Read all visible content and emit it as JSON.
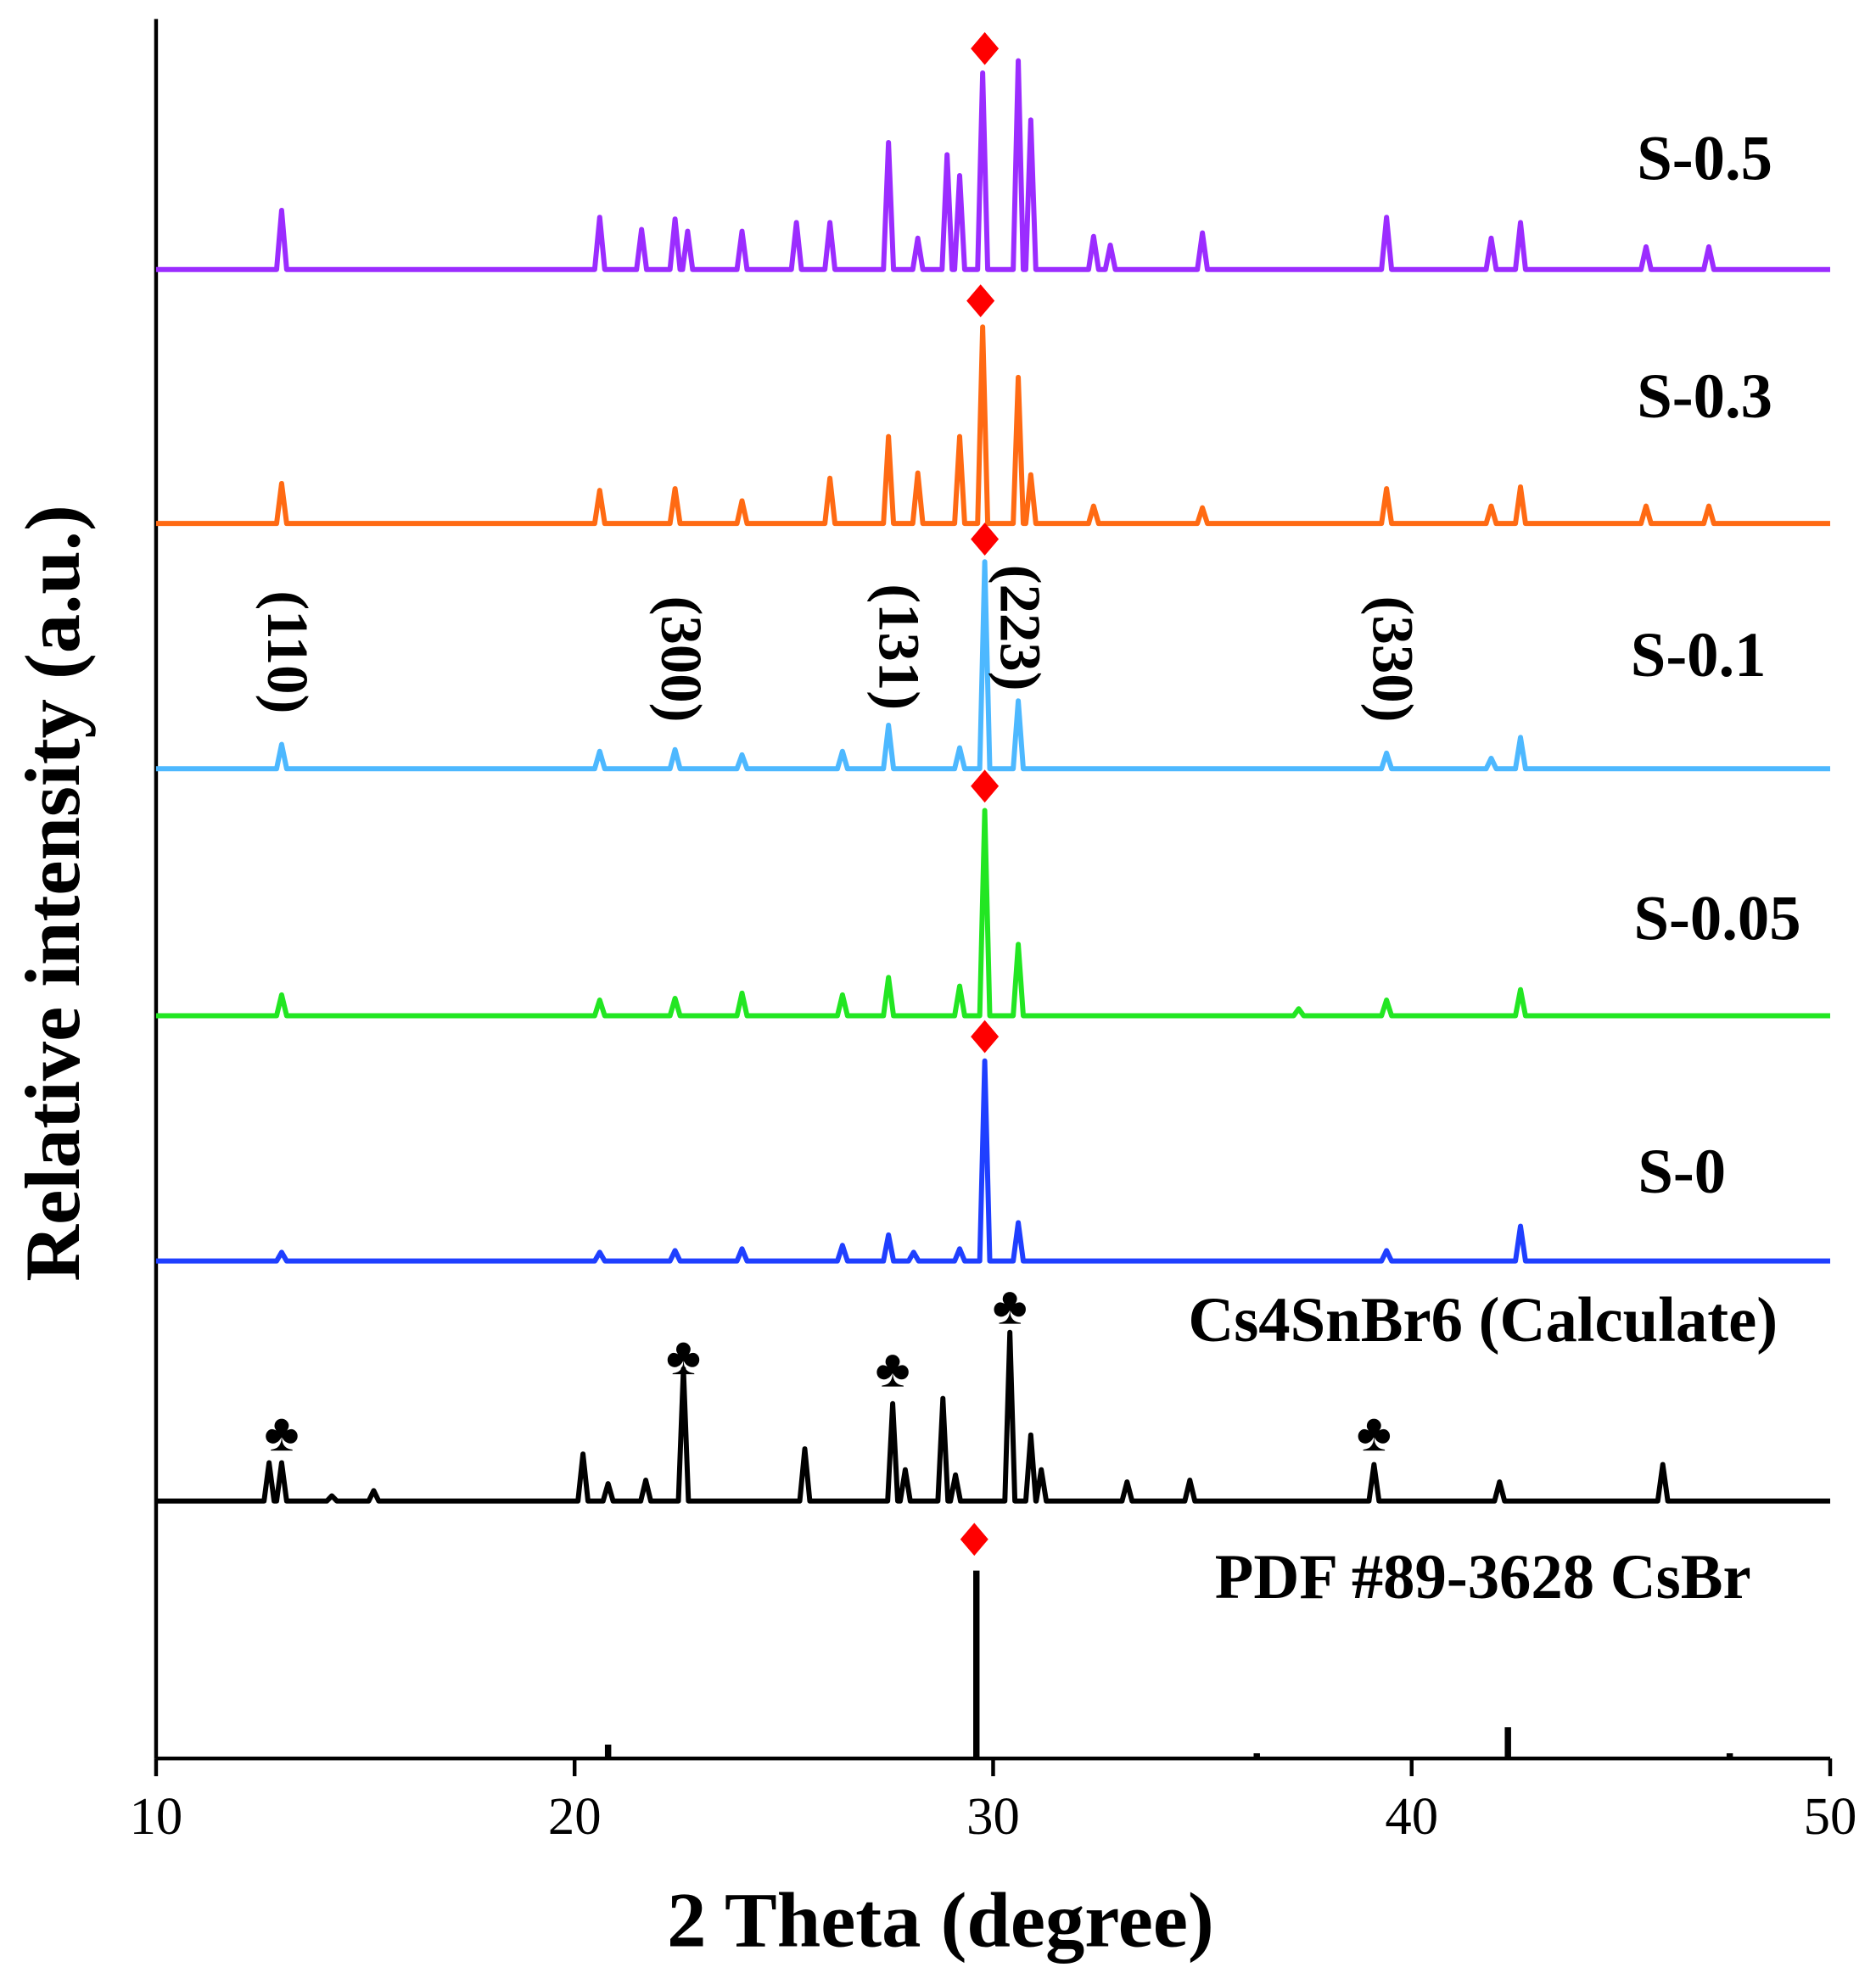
{
  "chart_data": {
    "type": "line",
    "xlabel": "2 Theta (degree)",
    "ylabel": "Relative intensity (a.u.)",
    "xlim": [
      10,
      50
    ],
    "xticks": [
      10,
      20,
      30,
      40,
      50
    ],
    "ylim": [
      0,
      100
    ],
    "series": [
      {
        "name": "S-0.5",
        "color": "#9b2cff",
        "x": [
          10,
          12.88,
          13.0,
          13.12,
          20.48,
          20.6,
          20.72,
          21.48,
          21.6,
          21.72,
          22.28,
          22.4,
          22.52,
          22.58,
          22.7,
          22.82,
          23.88,
          24.0,
          24.12,
          25.18,
          25.3,
          25.42,
          25.98,
          26.1,
          26.22,
          27.38,
          27.5,
          27.62,
          28.08,
          28.2,
          28.32,
          28.78,
          28.9,
          29.02,
          29.08,
          29.2,
          29.32,
          29.63,
          29.75,
          29.87,
          30.48,
          30.6,
          30.72,
          30.78,
          30.9,
          31.02,
          32.28,
          32.4,
          32.52,
          32.68,
          32.8,
          32.92,
          34.88,
          35.0,
          35.12,
          39.28,
          39.4,
          39.52,
          41.78,
          41.9,
          42.02,
          42.48,
          42.6,
          42.72,
          45.48,
          45.6,
          45.72,
          46.98,
          47.1,
          47.22,
          50
        ],
        "values": [
          85.6,
          85.6,
          89.0,
          85.6,
          85.6,
          88.6,
          85.6,
          85.6,
          87.9,
          85.6,
          85.6,
          88.5,
          85.6,
          85.6,
          87.8,
          85.6,
          85.6,
          87.8,
          85.6,
          85.6,
          88.3,
          85.6,
          85.6,
          88.3,
          85.6,
          85.6,
          92.9,
          85.6,
          85.6,
          87.4,
          85.6,
          85.6,
          92.2,
          85.6,
          85.6,
          91.0,
          85.6,
          85.6,
          96.9,
          85.6,
          85.6,
          97.6,
          85.6,
          85.6,
          94.2,
          85.6,
          85.6,
          87.5,
          85.6,
          85.6,
          87.0,
          85.6,
          85.6,
          87.7,
          85.6,
          85.6,
          88.6,
          85.6,
          85.6,
          87.4,
          85.6,
          85.6,
          88.3,
          85.6,
          85.6,
          86.9,
          85.6,
          85.6,
          86.9,
          85.6,
          85.6
        ]
      },
      {
        "name": "S-0.3",
        "color": "#ff6a13",
        "x": [
          10,
          12.88,
          13.0,
          13.12,
          20.48,
          20.6,
          20.72,
          22.28,
          22.4,
          22.52,
          23.88,
          24.0,
          24.12,
          25.98,
          26.1,
          26.22,
          27.38,
          27.5,
          27.62,
          28.08,
          28.2,
          28.32,
          29.08,
          29.2,
          29.32,
          29.63,
          29.75,
          29.87,
          30.48,
          30.6,
          30.72,
          30.78,
          30.9,
          31.02,
          32.28,
          32.4,
          32.52,
          34.88,
          35.0,
          35.12,
          39.28,
          39.4,
          39.52,
          41.78,
          41.9,
          42.02,
          42.48,
          42.6,
          42.72,
          45.48,
          45.6,
          45.72,
          46.98,
          47.1,
          47.22,
          50
        ],
        "values": [
          71.0,
          71.0,
          73.3,
          71.0,
          71.0,
          72.9,
          71.0,
          71.0,
          73.0,
          71.0,
          71.0,
          72.3,
          71.0,
          71.0,
          73.6,
          71.0,
          71.0,
          76.0,
          71.0,
          71.0,
          73.9,
          71.0,
          71.0,
          76.0,
          71.0,
          71.0,
          82.3,
          71.0,
          71.0,
          79.4,
          71.0,
          71.0,
          73.8,
          71.0,
          71.0,
          72.0,
          71.0,
          71.0,
          71.9,
          71.0,
          71.0,
          73.0,
          71.0,
          71.0,
          72.0,
          71.0,
          71.0,
          73.1,
          71.0,
          71.0,
          72.0,
          71.0,
          71.0,
          72.0,
          71.0,
          71.0
        ]
      },
      {
        "name": "S-0.1",
        "color": "#4db8ff",
        "x": [
          10,
          12.88,
          13.0,
          13.12,
          20.48,
          20.6,
          20.72,
          22.28,
          22.4,
          22.52,
          23.88,
          24.0,
          24.12,
          26.28,
          26.4,
          26.52,
          27.38,
          27.5,
          27.62,
          29.08,
          29.2,
          29.32,
          29.68,
          29.8,
          29.92,
          30.48,
          30.6,
          30.72,
          39.28,
          39.4,
          39.52,
          41.78,
          41.9,
          42.02,
          42.48,
          42.6,
          42.72,
          50
        ],
        "values": [
          56.9,
          56.9,
          58.3,
          56.9,
          56.9,
          57.9,
          56.9,
          56.9,
          58.0,
          56.9,
          56.9,
          57.7,
          56.9,
          56.9,
          57.9,
          56.9,
          56.9,
          59.4,
          56.9,
          56.9,
          58.1,
          56.9,
          56.9,
          68.8,
          56.9,
          56.9,
          60.8,
          56.9,
          56.9,
          57.8,
          56.9,
          56.9,
          57.5,
          56.9,
          56.9,
          58.7,
          56.9,
          56.9
        ]
      },
      {
        "name": "S-0.05",
        "color": "#22e622",
        "x": [
          10,
          12.88,
          13.0,
          13.12,
          20.48,
          20.6,
          20.72,
          22.28,
          22.4,
          22.52,
          23.88,
          24.0,
          24.12,
          26.28,
          26.4,
          26.52,
          27.38,
          27.5,
          27.62,
          29.08,
          29.2,
          29.32,
          29.68,
          29.8,
          29.92,
          30.48,
          30.6,
          30.72,
          37.18,
          37.3,
          37.42,
          39.28,
          39.4,
          39.52,
          42.48,
          42.6,
          42.72,
          50
        ],
        "values": [
          42.7,
          42.7,
          43.9,
          42.7,
          42.7,
          43.6,
          42.7,
          42.7,
          43.7,
          42.7,
          42.7,
          44.0,
          42.7,
          42.7,
          43.9,
          42.7,
          42.7,
          44.9,
          42.7,
          42.7,
          44.4,
          42.7,
          42.7,
          54.5,
          42.7,
          42.7,
          46.8,
          42.7,
          42.7,
          43.1,
          42.7,
          42.7,
          43.6,
          42.7,
          42.7,
          44.2,
          42.7,
          42.7
        ]
      },
      {
        "name": "S-0",
        "color": "#1f3fff",
        "x": [
          10,
          12.88,
          13.0,
          13.12,
          20.48,
          20.6,
          20.72,
          22.28,
          22.4,
          22.52,
          23.88,
          24.0,
          24.12,
          26.28,
          26.4,
          26.52,
          27.38,
          27.5,
          27.62,
          27.98,
          28.1,
          28.22,
          29.08,
          29.2,
          29.32,
          29.68,
          29.8,
          29.92,
          30.48,
          30.6,
          30.72,
          39.28,
          39.4,
          39.52,
          42.48,
          42.6,
          42.72,
          50
        ],
        "values": [
          28.6,
          28.6,
          29.1,
          28.6,
          28.6,
          29.1,
          28.6,
          28.6,
          29.2,
          28.6,
          28.6,
          29.3,
          28.6,
          28.6,
          29.5,
          28.6,
          28.6,
          30.1,
          28.6,
          28.6,
          29.1,
          28.6,
          28.6,
          29.3,
          28.6,
          28.6,
          40.1,
          28.6,
          28.6,
          30.8,
          28.6,
          28.6,
          29.2,
          28.6,
          28.6,
          30.6,
          28.6,
          28.6
        ]
      },
      {
        "name": "Cs4SnBr6 (Calculate)",
        "color": "#000000",
        "x": [
          10,
          12.58,
          12.7,
          12.82,
          12.88,
          13.0,
          13.12,
          14.08,
          14.2,
          14.32,
          15.08,
          15.2,
          15.32,
          20.08,
          20.2,
          20.32,
          20.68,
          20.8,
          20.92,
          21.58,
          21.7,
          21.82,
          22.48,
          22.6,
          22.72,
          25.38,
          25.5,
          25.62,
          27.48,
          27.6,
          27.72,
          27.78,
          27.9,
          28.02,
          28.68,
          28.8,
          28.92,
          28.98,
          29.1,
          29.22,
          30.28,
          30.4,
          30.52,
          30.78,
          30.9,
          31.02,
          31.03,
          31.15,
          31.27,
          33.08,
          33.2,
          33.32,
          34.58,
          34.7,
          34.82,
          38.98,
          39.1,
          39.22,
          41.98,
          42.1,
          42.22,
          45.88,
          46.0,
          46.12,
          50
        ],
        "values": [
          14.8,
          14.8,
          17.0,
          14.8,
          14.8,
          17.0,
          14.8,
          14.8,
          15.1,
          14.8,
          14.8,
          15.4,
          14.8,
          14.8,
          17.5,
          14.8,
          14.8,
          15.8,
          14.8,
          14.8,
          16.0,
          14.8,
          14.8,
          22.4,
          14.8,
          14.8,
          17.8,
          14.8,
          14.8,
          20.4,
          14.8,
          14.8,
          16.6,
          14.8,
          14.8,
          20.7,
          14.8,
          14.8,
          16.3,
          14.8,
          14.8,
          24.5,
          14.8,
          14.8,
          18.6,
          14.8,
          14.8,
          16.6,
          14.8,
          14.8,
          15.9,
          14.8,
          14.8,
          16.0,
          14.8,
          14.8,
          16.9,
          14.8,
          14.8,
          15.9,
          14.8,
          14.8,
          16.9,
          14.8,
          14.8
        ]
      },
      {
        "name": "PDF #89-3628 CsBr",
        "color": "#000000",
        "style": "stick",
        "x": [
          20.8,
          29.6,
          36.3,
          42.3,
          47.6
        ],
        "values": [
          0.8,
          10.8,
          0.3,
          1.8,
          0.3
        ]
      }
    ],
    "markers": {
      "color": "#ff0000",
      "x": [
        29.8,
        29.7,
        29.8,
        29.8,
        29.8,
        29.55
      ],
      "y": [
        98.3,
        83.8,
        70.1,
        55.9,
        41.5,
        12.6
      ]
    },
    "annotations": [
      {
        "text": "♣",
        "x": 13.0,
        "y": 18.4
      },
      {
        "text": "♣",
        "x": 22.6,
        "y": 22.8
      },
      {
        "text": "♣",
        "x": 27.6,
        "y": 22.1
      },
      {
        "text": "♣",
        "x": 30.4,
        "y": 25.7
      },
      {
        "text": "♣",
        "x": 39.1,
        "y": 18.4
      },
      {
        "text": "(110)",
        "x": 13.0,
        "y": 63.6,
        "rotation": 90
      },
      {
        "text": "(300)",
        "x": 22.4,
        "y": 63.2,
        "rotation": 90
      },
      {
        "text": "(131)",
        "x": 27.6,
        "y": 63.9,
        "rotation": 90
      },
      {
        "text": "(223)",
        "x": 30.5,
        "y": 65.0,
        "rotation": 90
      },
      {
        "text": "(330)",
        "x": 39.4,
        "y": 63.2,
        "rotation": 90
      }
    ]
  }
}
